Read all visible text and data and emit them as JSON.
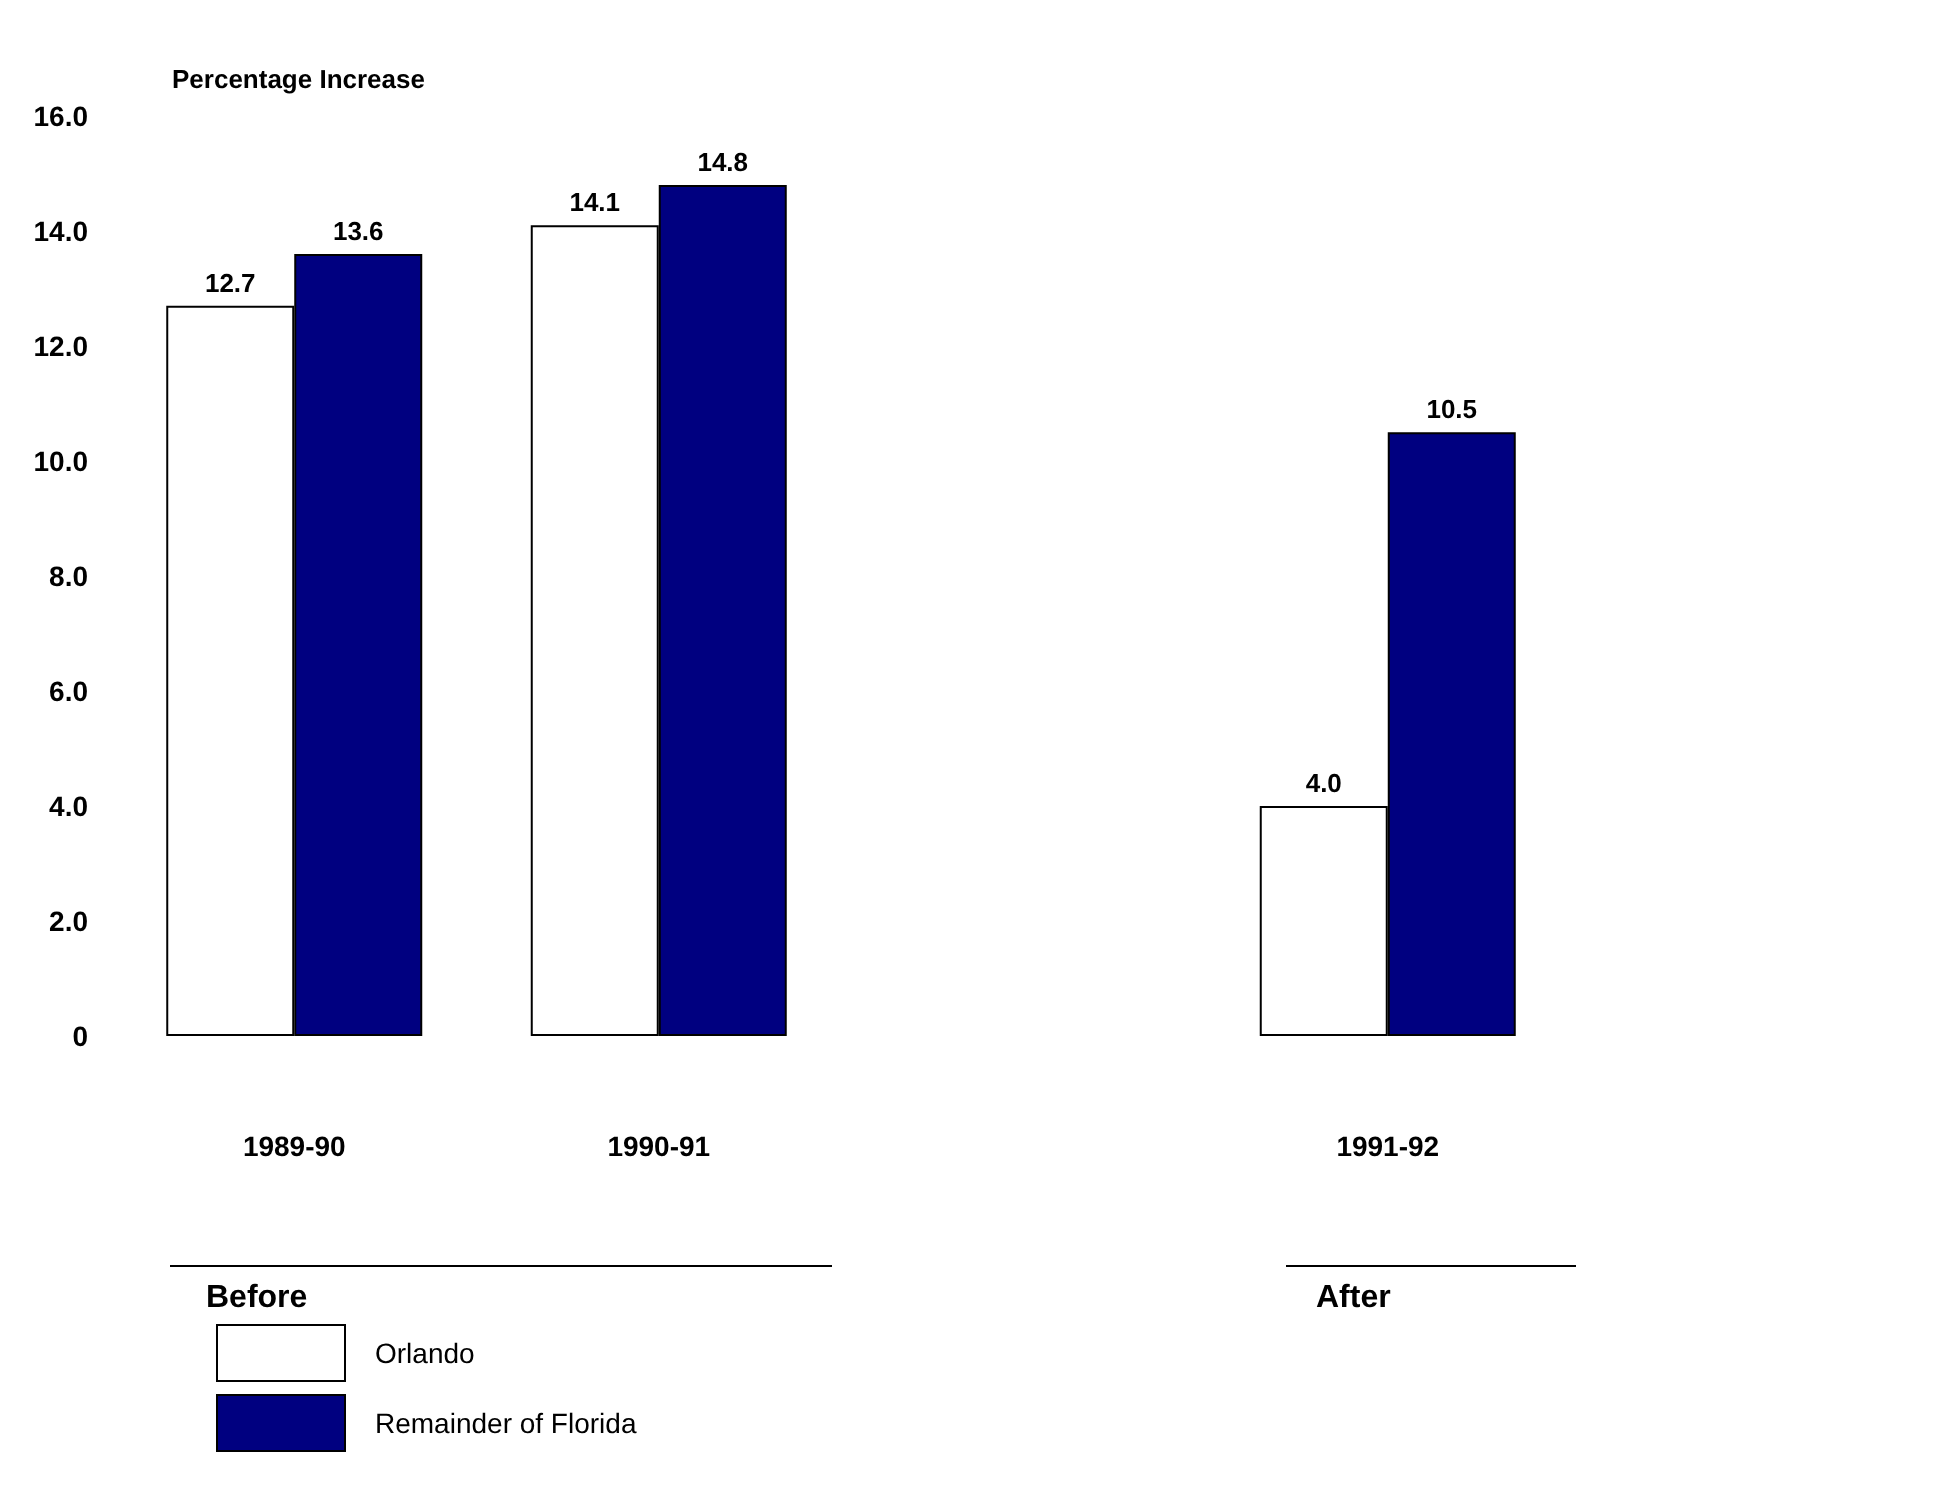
{
  "chart_data": {
    "type": "bar",
    "ylabel": "Percentage Increase",
    "categories": [
      "1989-90",
      "1990-91",
      null,
      "1991-92"
    ],
    "series": [
      {
        "name": "Orlando",
        "color": "#ffffff",
        "values": [
          12.7,
          14.1,
          null,
          4.0
        ],
        "value_labels": [
          "12.7",
          "14.1",
          null,
          "4.0"
        ]
      },
      {
        "name": "Remainder of Florida",
        "color": "#000080",
        "values": [
          13.6,
          14.8,
          null,
          10.5
        ],
        "value_labels": [
          "13.6",
          "14.8",
          null,
          "10.5"
        ]
      }
    ],
    "ylim": [
      0,
      16
    ],
    "yticks": [
      0,
      {
        "value": 2,
        "label": "2.0"
      },
      {
        "value": 4,
        "label": "4.0"
      },
      {
        "value": 6,
        "label": "6.0"
      },
      {
        "value": 8,
        "label": "8.0"
      },
      {
        "value": 10,
        "label": "10.0"
      },
      {
        "value": 12,
        "label": "12.0"
      },
      {
        "value": 14,
        "label": "14.0"
      },
      {
        "value": 16,
        "label": "16.0"
      }
    ],
    "grid": false,
    "legend": "bottom left",
    "annotations": [
      "Before",
      "After"
    ]
  }
}
